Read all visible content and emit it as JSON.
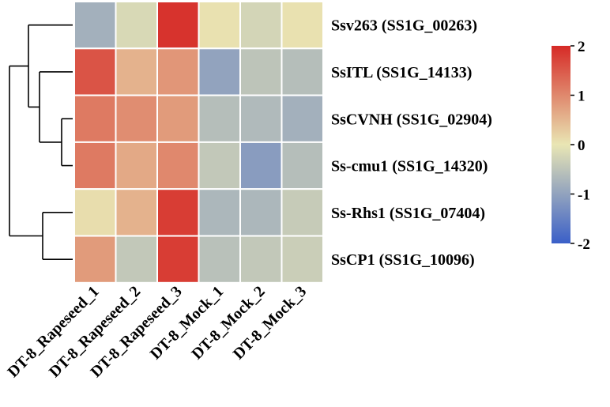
{
  "chart_data": {
    "type": "heatmap",
    "title": "",
    "xlabel": "",
    "ylabel": "",
    "columns": [
      "DT-8_Rapeseed_1",
      "DT-8_Rapeseed_2",
      "DT-8_Rapeseed_3",
      "DT-8_Mock_1",
      "DT-8_Mock_2",
      "DT-8_Mock_3"
    ],
    "rows": [
      "Ssv263 (SS1G_00263)",
      "SsITL (SS1G_14133)",
      "SsCVNH (SS1G_02904)",
      "Ss-cmu1 (SS1G_14320)",
      "Ss-Rhs1 (SS1G_07404)",
      "SsCP1 (SS1G_10096)"
    ],
    "values": [
      [
        -0.8,
        -0.2,
        1.9,
        0.05,
        -0.25,
        0.05
      ],
      [
        1.55,
        0.55,
        0.85,
        -1.0,
        -0.5,
        -0.6
      ],
      [
        1.15,
        0.95,
        0.8,
        -0.6,
        -0.65,
        -0.8
      ],
      [
        1.15,
        0.65,
        1.0,
        -0.45,
        -1.1,
        -0.6
      ],
      [
        0.1,
        0.55,
        1.8,
        -0.7,
        -0.7,
        -0.4
      ],
      [
        0.8,
        -0.45,
        1.8,
        -0.55,
        -0.45,
        -0.35
      ]
    ],
    "colorbar": {
      "range": [
        -2,
        2
      ],
      "ticks": [
        "2",
        "1",
        "0",
        "-1",
        "-2"
      ],
      "tick_values": [
        2,
        1,
        0,
        -1,
        -2
      ],
      "colors": [
        "#3a5fc8",
        "#e9e6b4",
        "#d62a26"
      ]
    },
    "dendrogram": {
      "side": "left",
      "merge_order": [
        [
          2,
          3
        ],
        [
          1,
          "2-3"
        ],
        [
          0,
          "1-2-3"
        ],
        [
          4,
          5
        ],
        [
          "0-3",
          "4-5"
        ]
      ]
    },
    "grid": false,
    "legend_position": "right"
  }
}
